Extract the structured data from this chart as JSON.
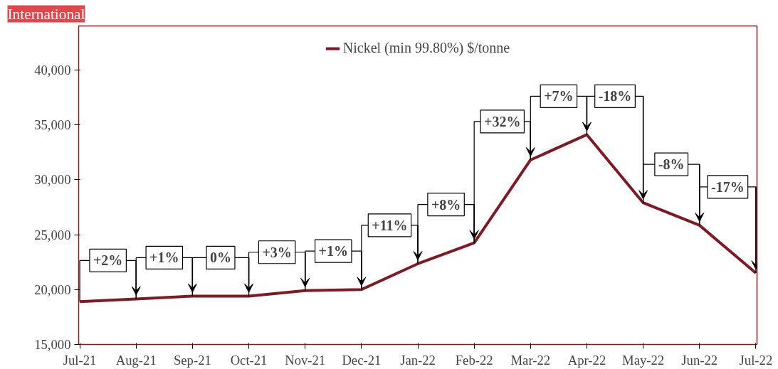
{
  "chart_data": {
    "type": "line",
    "categories": [
      "Jul-21",
      "Aug-21",
      "Sep-21",
      "Oct-21",
      "Nov-21",
      "Dec-21",
      "Jan-22",
      "Feb-22",
      "Mar-22",
      "Apr-22",
      "May-22",
      "Jun-22",
      "Jul-22"
    ],
    "series": [
      {
        "name": "Nickel (min 99.80%) $/tonne",
        "color": "#7f1a24",
        "values": [
          18900,
          19150,
          19400,
          19400,
          19900,
          20000,
          22350,
          24250,
          31800,
          34100,
          27900,
          25850,
          21500
        ]
      }
    ],
    "ylim": [
      15000,
      44000
    ],
    "yticks": [
      {
        "value": 15000,
        "label": "15,000"
      },
      {
        "value": 20000,
        "label": "20,000"
      },
      {
        "value": 25000,
        "label": "25,000"
      },
      {
        "value": 30000,
        "label": "30,000"
      },
      {
        "value": 35000,
        "label": "35,000"
      },
      {
        "value": 40000,
        "label": "40,000"
      }
    ],
    "grid": false,
    "legend": "top",
    "marker": "none",
    "line_style": "solid",
    "annotations": [
      "International",
      {
        "text": "+2%",
        "x": "Aug-21",
        "y": 19150
      },
      {
        "text": "+1%",
        "x": "Sep-21",
        "y": 19400
      },
      {
        "text": "0%",
        "x": "Oct-21",
        "y": 19400
      },
      {
        "text": "+3%",
        "x": "Nov-21",
        "y": 19900
      },
      {
        "text": "+1%",
        "x": "Dec-21",
        "y": 20000
      },
      {
        "text": "+11%",
        "x": "Jan-22",
        "y": 22350
      },
      {
        "text": "+8%",
        "x": "Feb-22",
        "y": 24250
      },
      {
        "text": "+32%",
        "x": "Mar-22",
        "y": 31800
      },
      {
        "text": "+7%",
        "x": "Apr-22",
        "y": 34100
      },
      {
        "text": "-18%",
        "x": "May-22",
        "y": 27900
      },
      {
        "text": "-8%",
        "x": "Jun-22",
        "y": 25850
      },
      {
        "text": "-17%",
        "x": "Jul-22",
        "y": 21500
      }
    ]
  }
}
